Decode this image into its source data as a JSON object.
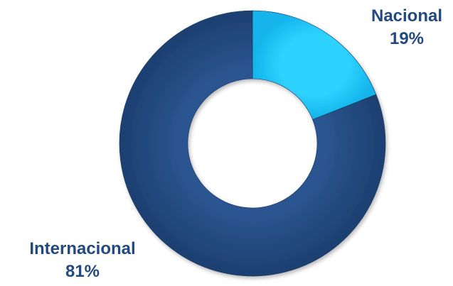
{
  "chart_data": {
    "type": "pie",
    "variant": "donut",
    "slices": [
      {
        "label": "Nacional",
        "value": 19,
        "display": "19%",
        "color": "#1ec8ff"
      },
      {
        "label": "Internacional",
        "value": 81,
        "display": "81%",
        "color": "#234a80"
      }
    ],
    "label_color": "#234a80",
    "legend": "none"
  }
}
